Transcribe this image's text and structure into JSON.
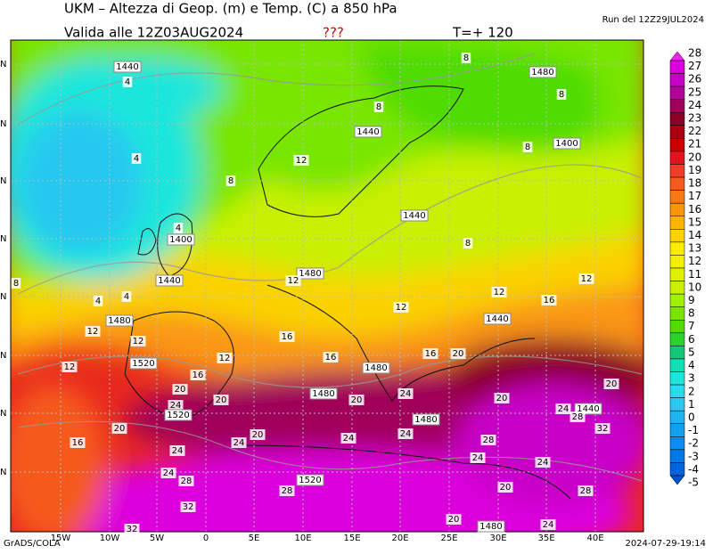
{
  "header": {
    "title": "UKM – Altezza di Geop. (m) e Temp. (C) a 850 hPa",
    "run": "Run del 12Z29JUL2024",
    "valid": "Valida alle 12Z03AUG2024",
    "flag": "???",
    "lead": "T=+ 120"
  },
  "map": {
    "lon_labels": [
      "15W",
      "10W",
      "5W",
      "0",
      "5E",
      "10E",
      "15E",
      "20E",
      "25E",
      "30E",
      "35E",
      "40E"
    ],
    "lat_labels": [
      "N",
      "N",
      "N",
      "N",
      "N",
      "N",
      "N",
      "N"
    ],
    "contour_labels": [
      1440,
      4,
      1480,
      8,
      8,
      8,
      1440,
      8,
      1400,
      4,
      12,
      8,
      4,
      1400,
      1440,
      8,
      8,
      1480,
      12,
      1440,
      4,
      4,
      12,
      12,
      1480,
      16,
      12,
      1440,
      12,
      12,
      16,
      16,
      16,
      20,
      12,
      1520,
      12,
      1480,
      16,
      20,
      20,
      1480,
      24,
      20,
      20,
      20,
      24,
      1520,
      24,
      1440,
      28,
      1480,
      20,
      20,
      24,
      24,
      32,
      16,
      24,
      28,
      24,
      24,
      24,
      24,
      28,
      1520,
      20,
      28,
      28,
      32,
      20,
      1480,
      24,
      32
    ]
  },
  "colorbar": {
    "levels": [
      28,
      27,
      26,
      25,
      24,
      23,
      22,
      21,
      20,
      19,
      18,
      17,
      16,
      15,
      14,
      13,
      12,
      11,
      10,
      9,
      8,
      7,
      6,
      5,
      4,
      3,
      2,
      1,
      0,
      -1,
      -2,
      -3,
      -4,
      -5
    ],
    "colors": [
      "#f01ef0",
      "#dc00dc",
      "#c800c8",
      "#b4009b",
      "#a0005a",
      "#8c0028",
      "#aa0014",
      "#c80000",
      "#e1141e",
      "#f03c28",
      "#f55a1e",
      "#fa7814",
      "#fa960a",
      "#fab400",
      "#fad200",
      "#faeb00",
      "#f0f000",
      "#dcf000",
      "#c8f000",
      "#a0f000",
      "#78e600",
      "#50dc00",
      "#28d228",
      "#14c878",
      "#14dcb4",
      "#1ee6dc",
      "#28dcf0",
      "#28c8f0",
      "#1eb4f0",
      "#14a0f0",
      "#0a8cf0",
      "#0078e6",
      "#0064dc",
      "#0050d2"
    ]
  },
  "footer": {
    "left": "GrADS/COLA",
    "right": "2024-07-29-19:14"
  }
}
